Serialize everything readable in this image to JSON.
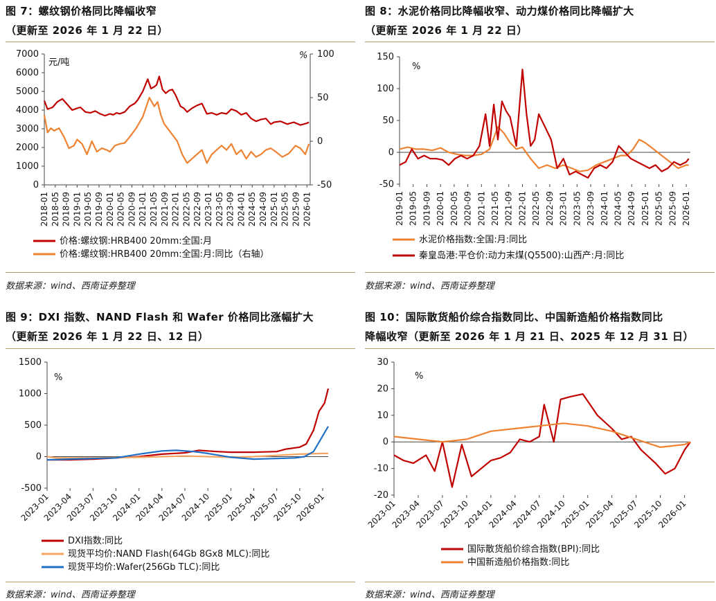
{
  "panels": {
    "p1": {
      "title": "图 7：螺纹钢价格同比降幅收窄",
      "subtitle": "（更新至 2026 年 1 月 22 日）",
      "source": "数据来源：wind、西南证券整理"
    },
    "p2": {
      "title": "图 8：水泥价格同比降幅收窄、动力煤价格同比降幅扩大",
      "subtitle": "（更新至 2026 年 1 月 22 日）",
      "source": "数据来源：wind、西南证券整理"
    },
    "p3": {
      "title": "图 9：DXI 指数、NAND Flash 和 Wafer 价格同比涨幅扩大",
      "subtitle": "（更新至 2026 年 1 月 22 日、12 日）",
      "source": "数据来源：wind、西南证券整理"
    },
    "p4": {
      "title": "图 10：国际散货船价综合指数同比、中国新造船价格指数同比",
      "subtitle": "降幅收窄（更新至 2026 年 1 月 21 日、2025 年 12 月 31 日）",
      "source": "数据来源：wind、西南证券整理"
    }
  },
  "chart_data": [
    {
      "type": "line",
      "id": "c1",
      "title": "螺纹钢价格同比降幅收窄",
      "ylabel": "元/吨",
      "y2label": "%",
      "ylim": [
        0,
        7000
      ],
      "yticks": [
        "7000",
        "6000",
        "5000",
        "4000",
        "3000",
        "2000",
        "1000",
        "0"
      ],
      "y2lim": [
        -50,
        100
      ],
      "y2ticks": [
        "100",
        "50",
        "0",
        "-50"
      ],
      "xlim": [
        2018.0,
        2026.1
      ],
      "categories": [
        "2018-01",
        "2018-05",
        "2018-09",
        "2019-01",
        "2019-05",
        "2019-09",
        "2020-01",
        "2020-05",
        "2020-09",
        "2021-01",
        "2021-05",
        "2021-09",
        "2022-01",
        "2022-05",
        "2022-09",
        "2023-01",
        "2023-05",
        "2023-09",
        "2024-01",
        "2024-05",
        "2024-09",
        "2025-01",
        "2025-05",
        "2025-09",
        "2026-01"
      ],
      "series": [
        {
          "name": "价格:螺纹钢:HRB400 20mm:全国:月",
          "axis": "left",
          "color": "#c00000",
          "x": [
            2018.0,
            2018.1,
            2018.25,
            2018.4,
            2018.55,
            2018.7,
            2018.85,
            2019.0,
            2019.1,
            2019.25,
            2019.4,
            2019.55,
            2019.7,
            2019.85,
            2020.0,
            2020.1,
            2020.2,
            2020.3,
            2020.45,
            2020.6,
            2020.75,
            2020.85,
            2021.0,
            2021.15,
            2021.25,
            2021.35,
            2021.42,
            2021.5,
            2021.6,
            2021.7,
            2021.8,
            2021.9,
            2022.0,
            2022.15,
            2022.25,
            2022.35,
            2022.5,
            2022.65,
            2022.8,
            2022.95,
            2023.1,
            2023.25,
            2023.4,
            2023.55,
            2023.7,
            2023.85,
            2024.0,
            2024.15,
            2024.3,
            2024.45,
            2024.6,
            2024.75,
            2024.9,
            2025.0,
            2025.2,
            2025.4,
            2025.6,
            2025.8,
            2026.0,
            2026.06
          ],
          "y": [
            4500,
            4050,
            4150,
            4450,
            4600,
            4300,
            4000,
            4100,
            4150,
            3900,
            3850,
            3950,
            3800,
            3700,
            3800,
            3750,
            3850,
            3800,
            3900,
            4200,
            4350,
            4550,
            5000,
            5650,
            5150,
            5250,
            5350,
            5800,
            5100,
            4900,
            5050,
            5100,
            4800,
            4200,
            4100,
            3900,
            4100,
            4250,
            4350,
            3800,
            3850,
            3750,
            3850,
            3800,
            4050,
            3950,
            3750,
            3850,
            3550,
            3400,
            3500,
            3550,
            3250,
            3350,
            3400,
            3250,
            3350,
            3200,
            3300,
            3350
          ]
        },
        {
          "name": "价格:螺纹钢:HRB400 20mm:全国:月:同比（右轴）",
          "axis": "right",
          "color": "#ee8231",
          "x": [
            2018.0,
            2018.1,
            2018.2,
            2018.3,
            2018.45,
            2018.6,
            2018.75,
            2018.9,
            2019.0,
            2019.15,
            2019.3,
            2019.45,
            2019.6,
            2019.75,
            2019.9,
            2020.0,
            2020.15,
            2020.3,
            2020.45,
            2020.6,
            2020.8,
            2021.0,
            2021.2,
            2021.35,
            2021.45,
            2021.55,
            2021.65,
            2021.75,
            2021.85,
            2021.95,
            2022.05,
            2022.2,
            2022.35,
            2022.5,
            2022.65,
            2022.8,
            2022.95,
            2023.1,
            2023.25,
            2023.4,
            2023.55,
            2023.7,
            2023.85,
            2024.0,
            2024.15,
            2024.3,
            2024.45,
            2024.6,
            2024.75,
            2024.9,
            2025.05,
            2025.25,
            2025.45,
            2025.65,
            2025.8,
            2025.95,
            2026.06
          ],
          "y": [
            30,
            10,
            15,
            12,
            15,
            5,
            -8,
            -5,
            2,
            -3,
            -15,
            0,
            -12,
            -8,
            -10,
            -12,
            -5,
            -3,
            -2,
            5,
            15,
            28,
            50,
            40,
            45,
            30,
            20,
            15,
            10,
            5,
            0,
            -15,
            -25,
            -20,
            -15,
            -10,
            -25,
            -15,
            -10,
            -5,
            -10,
            -3,
            -15,
            -10,
            -20,
            -12,
            -18,
            -15,
            -10,
            -8,
            -12,
            -18,
            -14,
            -5,
            -8,
            -15,
            -3
          ]
        }
      ],
      "legend": [
        "价格:螺纹钢:HRB400 20mm:全国:月",
        "价格:螺纹钢:HRB400 20mm:全国:月:同比（右轴）"
      ]
    },
    {
      "type": "line",
      "id": "c2",
      "title": "水泥价格同比降幅收窄、动力煤价格同比降幅扩大",
      "ylabel": "%",
      "ylim": [
        -50,
        150
      ],
      "yticks": [
        "150",
        "100",
        "50",
        "0",
        "-50"
      ],
      "xlim": [
        2019.0,
        2026.1
      ],
      "categories": [
        "2019-01",
        "2019-05",
        "2019-09",
        "2020-01",
        "2020-05",
        "2020-09",
        "2021-01",
        "2021-05",
        "2021-09",
        "2022-01",
        "2022-05",
        "2022-09",
        "2023-01",
        "2023-05",
        "2023-09",
        "2024-01",
        "2024-05",
        "2024-09",
        "2025-01",
        "2025-05",
        "2025-09",
        "2026-01"
      ],
      "series": [
        {
          "name": "水泥价格指数:全国:月:同比",
          "color": "#ee8231",
          "x": [
            2019.0,
            2019.2,
            2019.4,
            2019.6,
            2019.8,
            2020.0,
            2020.2,
            2020.4,
            2020.6,
            2020.8,
            2021.0,
            2021.2,
            2021.4,
            2021.55,
            2021.7,
            2021.85,
            2022.0,
            2022.2,
            2022.4,
            2022.6,
            2022.8,
            2023.0,
            2023.2,
            2023.4,
            2023.6,
            2023.8,
            2024.0,
            2024.2,
            2024.4,
            2024.55,
            2024.7,
            2024.85,
            2025.0,
            2025.2,
            2025.4,
            2025.6,
            2025.8,
            2026.0,
            2026.06
          ],
          "y": [
            5,
            8,
            5,
            5,
            3,
            7,
            0,
            -3,
            -5,
            -5,
            -3,
            5,
            40,
            30,
            15,
            5,
            8,
            -10,
            -25,
            -20,
            -25,
            -20,
            -25,
            -30,
            -28,
            -20,
            -15,
            -10,
            -5,
            -5,
            5,
            20,
            15,
            5,
            -5,
            -15,
            -25,
            -20,
            -20
          ]
        },
        {
          "name": "秦皇岛港:平仓价:动力末煤(Q5500):山西产:月:同比",
          "color": "#c00000",
          "x": [
            2019.0,
            2019.15,
            2019.3,
            2019.45,
            2019.6,
            2019.75,
            2019.9,
            2020.05,
            2020.2,
            2020.35,
            2020.5,
            2020.65,
            2020.8,
            2020.95,
            2021.1,
            2021.2,
            2021.3,
            2021.4,
            2021.5,
            2021.6,
            2021.7,
            2021.85,
            2022.0,
            2022.1,
            2022.2,
            2022.3,
            2022.4,
            2022.55,
            2022.7,
            2022.85,
            2023.0,
            2023.15,
            2023.3,
            2023.45,
            2023.6,
            2023.75,
            2023.9,
            2024.05,
            2024.2,
            2024.35,
            2024.5,
            2024.65,
            2024.8,
            2024.95,
            2025.1,
            2025.25,
            2025.4,
            2025.55,
            2025.7,
            2025.85,
            2026.0,
            2026.06
          ],
          "y": [
            -20,
            -15,
            5,
            -10,
            -5,
            -10,
            -10,
            -12,
            -20,
            -10,
            -5,
            -10,
            -5,
            10,
            60,
            10,
            75,
            20,
            80,
            65,
            55,
            10,
            130,
            60,
            10,
            20,
            60,
            40,
            20,
            -25,
            -10,
            -35,
            -30,
            -35,
            -40,
            -25,
            -20,
            -25,
            -15,
            10,
            0,
            -10,
            -15,
            -20,
            -25,
            -20,
            -30,
            -25,
            -15,
            -20,
            -15,
            -10
          ]
        }
      ],
      "legend": [
        "水泥价格指数:全国:月:同比",
        "秦皇岛港:平仓价:动力末煤(Q5500):山西产:月:同比"
      ]
    },
    {
      "type": "line",
      "id": "c3",
      "title": "DXI 指数、NAND Flash 和 Wafer 价格同比涨幅扩大",
      "ylabel": "%",
      "ylim": [
        -500,
        1500
      ],
      "yticks": [
        "1500",
        "1000",
        "500",
        "0",
        "-500"
      ],
      "xlim": [
        2023.0,
        2026.06
      ],
      "categories": [
        "2023-01",
        "2023-04",
        "2023-07",
        "2023-10",
        "2024-01",
        "2024-04",
        "2024-07",
        "2024-10",
        "2025-01",
        "2025-04",
        "2025-07",
        "2025-10",
        "2026-01"
      ],
      "series": [
        {
          "name": "DXI指数:同比",
          "color": "#c00000",
          "x": [
            2023.0,
            2023.25,
            2023.5,
            2023.75,
            2024.0,
            2024.25,
            2024.5,
            2024.65,
            2024.85,
            2025.0,
            2025.25,
            2025.5,
            2025.6,
            2025.75,
            2025.82,
            2025.9,
            2025.96,
            2026.02,
            2026.06
          ],
          "y": [
            -50,
            -50,
            -40,
            -20,
            0,
            40,
            60,
            100,
            80,
            70,
            70,
            80,
            120,
            150,
            200,
            420,
            720,
            850,
            1080
          ]
        },
        {
          "name": "现货平均价:NAND Flash(64Gb 8Gx8 MLC):同比",
          "color": "#f4a460",
          "x": [
            2023.0,
            2023.1,
            2023.3,
            2023.5,
            2023.75,
            2024.0,
            2024.25,
            2024.5,
            2024.75,
            2025.0,
            2025.25,
            2025.5,
            2025.75,
            2026.0,
            2026.06
          ],
          "y": [
            0,
            -20,
            -20,
            -20,
            -15,
            -10,
            0,
            10,
            0,
            -10,
            0,
            20,
            40,
            50,
            50
          ]
        },
        {
          "name": "现货平均价:Wafer(256Gb TLC):同比",
          "color": "#1f6fc5",
          "x": [
            2023.0,
            2023.25,
            2023.5,
            2023.75,
            2024.0,
            2024.25,
            2024.4,
            2024.6,
            2024.75,
            2025.0,
            2025.25,
            2025.5,
            2025.7,
            2025.8,
            2025.9,
            2026.0,
            2026.06
          ],
          "y": [
            -50,
            -40,
            -30,
            -20,
            40,
            90,
            100,
            80,
            50,
            -10,
            -40,
            -30,
            -20,
            0,
            80,
            330,
            480
          ]
        }
      ],
      "legend": [
        "DXI指数:同比",
        "现货平均价:NAND Flash(64Gb 8Gx8 MLC):同比",
        "现货平均价:Wafer(256Gb TLC):同比"
      ]
    },
    {
      "type": "line",
      "id": "c4",
      "title": "国际散货船价综合指数同比、中国新造船价格指数同比",
      "ylabel": "%",
      "ylim": [
        -20,
        30
      ],
      "yticks": [
        "30",
        "20",
        "10",
        "0",
        "-10",
        "-20"
      ],
      "xlim": [
        2023.0,
        2026.06
      ],
      "categories": [
        "2023-01",
        "2023-04",
        "2023-07",
        "2023-10",
        "2024-01",
        "2024-04",
        "2024-07",
        "2024-10",
        "2025-01",
        "2025-04",
        "2025-07",
        "2025-10",
        "2026-01"
      ],
      "series": [
        {
          "name": "国际散货船价综合指数(BPI):同比",
          "color": "#c00000",
          "x": [
            2023.0,
            2023.1,
            2023.2,
            2023.33,
            2023.42,
            2023.5,
            2023.6,
            2023.7,
            2023.8,
            2023.9,
            2024.0,
            2024.1,
            2024.2,
            2024.3,
            2024.4,
            2024.5,
            2024.55,
            2024.65,
            2024.72,
            2024.82,
            2024.95,
            2025.1,
            2025.25,
            2025.35,
            2025.45,
            2025.55,
            2025.7,
            2025.8,
            2025.9,
            2026.0,
            2026.06
          ],
          "y": [
            -5,
            -7,
            -8,
            -5,
            -11,
            0,
            -17,
            -1,
            -13,
            -10,
            -7,
            -6,
            -4,
            1,
            0,
            2,
            14,
            0,
            16,
            17,
            18,
            10,
            5,
            1,
            2,
            -3,
            -8,
            -12,
            -10,
            -3,
            0
          ]
        },
        {
          "name": "中国新造船价格指数:同比",
          "color": "#ee8231",
          "x": [
            2023.0,
            2023.25,
            2023.5,
            2023.75,
            2024.0,
            2024.25,
            2024.5,
            2024.75,
            2025.0,
            2025.25,
            2025.5,
            2025.75,
            2026.0,
            2026.06
          ],
          "y": [
            2,
            1,
            0,
            1,
            4,
            5,
            6,
            7,
            6,
            4,
            1,
            -2,
            -1,
            0
          ]
        }
      ],
      "legend": [
        "国际散货船价综合指数(BPI):同比",
        "中国新造船价格指数:同比"
      ]
    }
  ]
}
